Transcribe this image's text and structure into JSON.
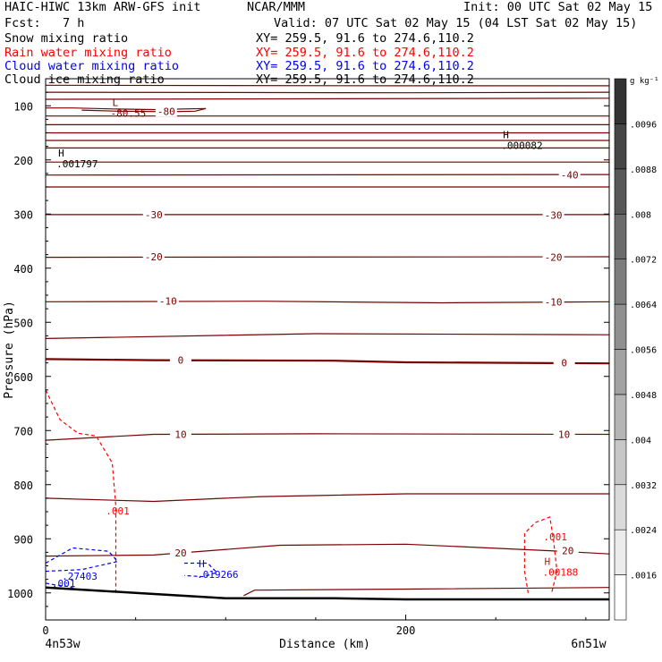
{
  "header": {
    "title_left": "HAIC-HIWC 13km ARW-GFS init",
    "org": "NCAR/MMM",
    "init": "Init: 00 UTC Sat 02 May 15",
    "fcst_label": "Fcst:",
    "fcst_value": "7 h",
    "valid": "Valid: 07 UTC Sat 02 May 15 (04 LST Sat 02 May 15)"
  },
  "legend_rows": [
    {
      "name": "Snow mixing ratio",
      "xy": "XY= 259.5, 91.6 to 274.6,110.2",
      "color": "#000000"
    },
    {
      "name": "Rain water mixing ratio",
      "xy": "XY= 259.5, 91.6 to 274.6,110.2",
      "color": "#ff0000"
    },
    {
      "name": "Cloud water mixing ratio",
      "xy": "XY= 259.5, 91.6 to 274.6,110.2",
      "color": "#0000ff"
    },
    {
      "name": "Cloud ice mixing ratio",
      "xy": "XY= 259.5, 91.6 to 274.6,110.2",
      "color": "#000000"
    }
  ],
  "chart_data": {
    "type": "cross-section",
    "ylabel": "Pressure (hPa)",
    "xlabel": "Distance (km)",
    "x_start_label": "4n53w",
    "x_end_label": "6n51w",
    "x_ticks": [
      0,
      200
    ],
    "x_range": [
      0,
      313
    ],
    "y_ticks": [
      100,
      200,
      300,
      400,
      500,
      600,
      700,
      800,
      900,
      1000
    ],
    "y_range": [
      50,
      1050
    ],
    "y_scale": "linear",
    "colorbar": {
      "unit": "g kg⁻¹",
      "ticks": [
        ".0016",
        ".0024",
        ".0032",
        ".004",
        ".0048",
        ".0056",
        ".0064",
        ".0072",
        ".008",
        ".0088",
        ".0096"
      ],
      "from_color": "#ffffff",
      "to_color": "#333333",
      "levels": 12
    },
    "colors": {
      "temperature": "#7a0000",
      "rain": "#ff0000",
      "cloud_water": "#0000ff",
      "ground": "#000000"
    },
    "temperature_contours": [
      {
        "level": -80,
        "label": "-80",
        "points": [
          [
            0,
            104
          ],
          [
            15,
            104
          ],
          [
            40,
            106
          ],
          [
            60,
            107
          ],
          [
            89,
            105
          ],
          [
            83,
            110
          ],
          [
            69,
            111
          ],
          [
            40,
            110
          ],
          [
            20,
            108
          ]
        ],
        "labels_at": [
          [
            67,
            110
          ]
        ]
      },
      {
        "level": null,
        "points": [
          [
            0,
            62
          ],
          [
            200,
            63
          ],
          [
            313,
            63
          ]
        ]
      },
      {
        "level": null,
        "points": [
          [
            0,
            75
          ],
          [
            200,
            76
          ],
          [
            313,
            75
          ]
        ]
      },
      {
        "level": null,
        "points": [
          [
            0,
            88
          ],
          [
            313,
            86
          ]
        ]
      },
      {
        "level": null,
        "points": [
          [
            0,
            119
          ],
          [
            313,
            119
          ]
        ]
      },
      {
        "level": null,
        "points": [
          [
            0,
            135
          ],
          [
            313,
            135
          ]
        ]
      },
      {
        "level": null,
        "points": [
          [
            0,
            150
          ],
          [
            313,
            150
          ]
        ]
      },
      {
        "level": null,
        "points": [
          [
            0,
            164
          ],
          [
            313,
            164
          ]
        ]
      },
      {
        "level": null,
        "points": [
          [
            0,
            178
          ],
          [
            313,
            178
          ]
        ]
      },
      {
        "level": null,
        "points": [
          [
            0,
            204
          ],
          [
            313,
            204
          ]
        ]
      },
      {
        "level": -40,
        "label": "-40",
        "points": [
          [
            0,
            228
          ],
          [
            313,
            227
          ]
        ],
        "labels_at": [
          [
            291,
            228
          ]
        ]
      },
      {
        "level": null,
        "points": [
          [
            0,
            250
          ],
          [
            313,
            250
          ]
        ]
      },
      {
        "level": -30,
        "label": "-30",
        "points": [
          [
            0,
            301
          ],
          [
            313,
            301
          ]
        ],
        "labels_at": [
          [
            60,
            301
          ],
          [
            282,
            302
          ]
        ]
      },
      {
        "level": -20,
        "label": "-20",
        "points": [
          [
            0,
            380
          ],
          [
            313,
            379
          ]
        ],
        "labels_at": [
          [
            60,
            379
          ],
          [
            282,
            380
          ]
        ]
      },
      {
        "level": -10,
        "label": "-10",
        "points": [
          [
            0,
            462
          ],
          [
            120,
            461
          ],
          [
            220,
            464
          ],
          [
            313,
            462
          ]
        ],
        "labels_at": [
          [
            68,
            461
          ],
          [
            282,
            462
          ]
        ]
      },
      {
        "level": null,
        "points": [
          [
            0,
            530
          ],
          [
            150,
            521
          ],
          [
            313,
            523
          ]
        ]
      },
      {
        "level": 0,
        "label": "0",
        "points": [
          [
            0,
            568
          ],
          [
            60,
            570
          ],
          [
            160,
            571
          ],
          [
            200,
            574
          ],
          [
            313,
            576
          ]
        ],
        "labels_at": [
          [
            75,
            570
          ],
          [
            288,
            575
          ]
        ],
        "bold": true
      },
      {
        "level": 10,
        "label": "10",
        "points": [
          [
            0,
            718
          ],
          [
            60,
            707
          ],
          [
            150,
            706
          ],
          [
            313,
            707
          ]
        ],
        "labels_at": [
          [
            75,
            707
          ],
          [
            288,
            707
          ]
        ]
      },
      {
        "level": null,
        "points": [
          [
            0,
            825
          ],
          [
            60,
            831
          ],
          [
            120,
            822
          ],
          [
            200,
            817
          ],
          [
            313,
            817
          ]
        ]
      },
      {
        "level": 20,
        "label": "20",
        "points": [
          [
            0,
            932
          ],
          [
            60,
            930
          ],
          [
            130,
            912
          ],
          [
            200,
            910
          ],
          [
            280,
            922
          ],
          [
            313,
            928
          ]
        ],
        "labels_at": [
          [
            75,
            926
          ],
          [
            290,
            922
          ]
        ]
      }
    ],
    "rain_contours": [
      {
        "level": 0.001,
        "label": ".001",
        "points": [
          [
            0,
            625
          ],
          [
            8,
            680
          ],
          [
            18,
            705
          ],
          [
            28,
            710
          ],
          [
            37,
            760
          ],
          [
            39,
            840
          ],
          [
            39,
            1000
          ]
        ],
        "labels_at": [
          [
            40,
            848
          ]
        ]
      },
      {
        "level": 0.001,
        "label": ".001",
        "points": [
          [
            268,
            1000
          ],
          [
            266,
            960
          ],
          [
            266,
            890
          ],
          [
            272,
            870
          ],
          [
            280,
            860
          ],
          [
            282,
            900
          ],
          [
            284,
            960
          ],
          [
            281,
            1000
          ]
        ],
        "labels_at": [
          [
            283,
            896
          ]
        ]
      }
    ],
    "cloud_water_contours": [
      {
        "level": 0.001,
        "label": ".001",
        "points": [
          [
            0,
            982
          ],
          [
            5,
            985
          ],
          [
            12,
            988
          ],
          [
            20,
            995
          ]
        ],
        "labels_at": [
          [
            10,
            982
          ]
        ]
      },
      {
        "level": null,
        "points": [
          [
            0,
            945
          ],
          [
            15,
            917
          ],
          [
            35,
            923
          ],
          [
            40,
            942
          ],
          [
            20,
            957
          ],
          [
            0,
            960
          ]
        ]
      },
      {
        "level": null,
        "points": [
          [
            77,
            945
          ],
          [
            90,
            945
          ],
          [
            95,
            962
          ],
          [
            88,
            970
          ],
          [
            77,
            968
          ]
        ]
      }
    ],
    "extrema": [
      {
        "mark": "L",
        "value": "-80.55",
        "x": 37,
        "p": 110,
        "color": "#7a0000"
      },
      {
        "mark": "H",
        "value": ".001797",
        "x": 7,
        "p": 204,
        "color": "#000000"
      },
      {
        "mark": "H",
        "value": ".000082",
        "x": 254,
        "p": 170,
        "color": "#000000"
      },
      {
        "mark": "H",
        "value": ".00188",
        "x": 277,
        "p": 958,
        "color": "#ff0000"
      },
      {
        "mark": "H",
        "value": ".019266",
        "x": 85,
        "p": 962,
        "color": "#0000ff"
      },
      {
        "mark": "",
        "value": ".27403",
        "x": 10,
        "p": 966,
        "color": "#0000ff"
      }
    ],
    "ground": [
      [
        0,
        990
      ],
      [
        50,
        1000
      ],
      [
        100,
        1010
      ],
      [
        160,
        1010
      ],
      [
        200,
        1012
      ],
      [
        313,
        1012
      ]
    ],
    "rain_ground": [
      [
        110,
        1005
      ],
      [
        116,
        995
      ],
      [
        200,
        993
      ],
      [
        313,
        990
      ]
    ]
  }
}
